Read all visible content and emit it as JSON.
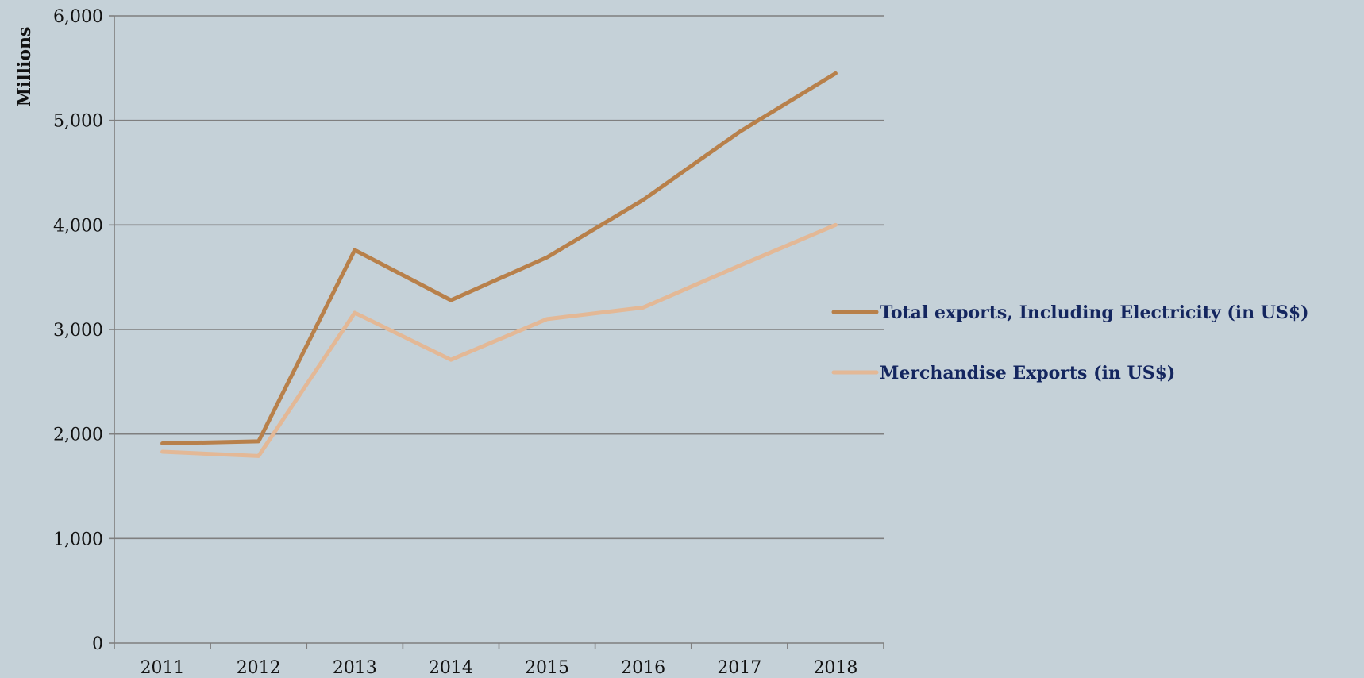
{
  "chart_data": {
    "type": "line",
    "title": "",
    "xlabel": "",
    "ylabel": "Millions",
    "categories": [
      "2011",
      "2012",
      "2013",
      "2014",
      "2015",
      "2016",
      "2017",
      "2018"
    ],
    "ylim": [
      0,
      6000
    ],
    "yticks": [
      0,
      1000,
      2000,
      3000,
      4000,
      5000,
      6000
    ],
    "ytick_labels": [
      "0",
      "1,000",
      "2,000",
      "3,000",
      "4,000",
      "5,000",
      "6,000"
    ],
    "grid": true,
    "legend_position": "right",
    "series": [
      {
        "name": "Total exports, Including Electricity (in US$)",
        "color": "#b8804a",
        "values": [
          1910,
          1930,
          3760,
          3280,
          3690,
          4240,
          4890,
          5450
        ]
      },
      {
        "name": "Merchandise Exports  (in US$)",
        "color": "#e3b896",
        "values": [
          1830,
          1790,
          3160,
          2710,
          3100,
          3210,
          3610,
          4000
        ]
      }
    ]
  }
}
